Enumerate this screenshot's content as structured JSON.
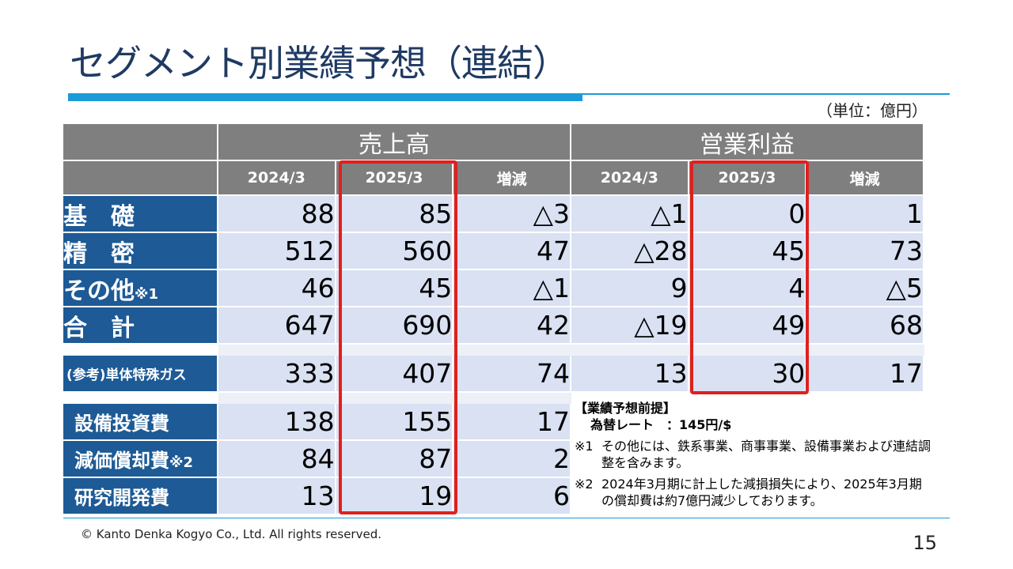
{
  "title": "セグメント別業績予想（連結）",
  "unit": "（単位：億円）",
  "headers": {
    "group1": "売上高",
    "group2": "営業利益",
    "sub": [
      "2024/3",
      "2025/3",
      "増減",
      "2024/3",
      "2025/3",
      "増減"
    ]
  },
  "rows": [
    {
      "label": "基　礎",
      "values": [
        "88",
        "85",
        "△3",
        "△1",
        "0",
        "1"
      ]
    },
    {
      "label": "精　密",
      "values": [
        "512",
        "560",
        "47",
        "△28",
        "45",
        "73"
      ]
    },
    {
      "label": "その他",
      "label_note": "※1",
      "values": [
        "46",
        "45",
        "△1",
        "9",
        "4",
        "△5"
      ]
    },
    {
      "label": "合　計",
      "values": [
        "647",
        "690",
        "42",
        "△19",
        "49",
        "68"
      ]
    }
  ],
  "reference_row": {
    "label": "(参考)単体特殊ガス",
    "values": [
      "333",
      "407",
      "74",
      "13",
      "30",
      "17"
    ]
  },
  "capex_rows": [
    {
      "label": "設備投資費",
      "values": [
        "138",
        "155",
        "17"
      ]
    },
    {
      "label": "減価償却費",
      "label_note": "※2",
      "values": [
        "84",
        "87",
        "2"
      ]
    },
    {
      "label": "研究開発費",
      "values": [
        "13",
        "19",
        "6"
      ]
    }
  ],
  "notes": {
    "title": "【業績予想前提】",
    "rate": "為替レート　：145円/$",
    "items": [
      {
        "mark": "※1",
        "text": "その他には、鉄系事業、商事事業、設備事業および連結調整を含みます。"
      },
      {
        "mark": "※2",
        "text": "2024年3月期に計上した減損損失により、2025年3月期の償却費は約7億円減少しております。"
      }
    ]
  },
  "copyright": "© Kanto Denka Kogyo Co., Ltd. All rights reserved.",
  "page_number": "15",
  "colors": {
    "accent": "#1a9ad6",
    "label_bg": "#1d5a96",
    "cell_bg": "#d9e1f2",
    "header_bg": "#7f7f7f",
    "highlight": "#e0201e"
  }
}
